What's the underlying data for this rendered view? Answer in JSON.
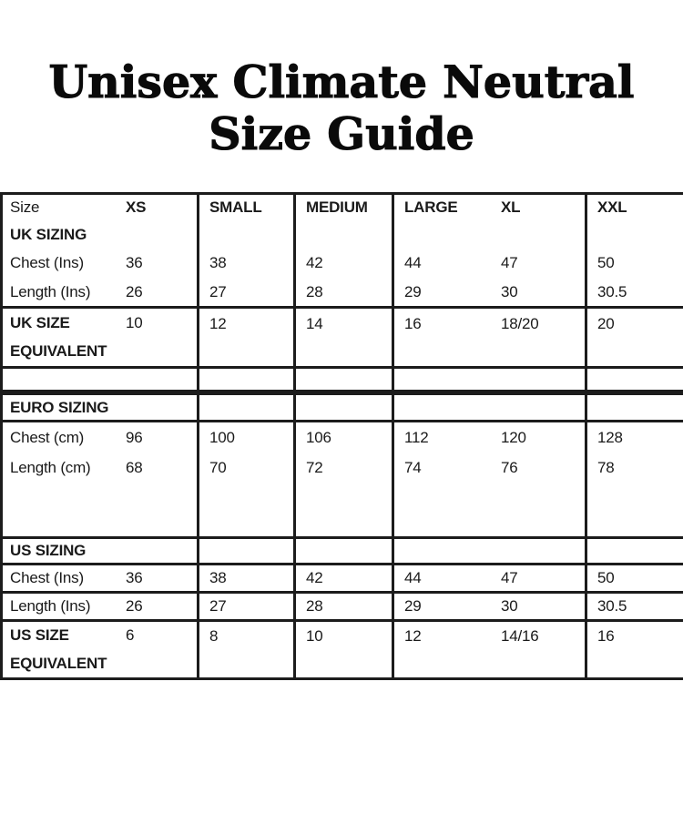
{
  "title": {
    "line1": "Unisex Climate Neutral",
    "line2": "Size Guide"
  },
  "colors": {
    "background": "#ffffff",
    "border": "#1c1c1c",
    "text": "#1a1a1a"
  },
  "table": {
    "header": {
      "label": "Size",
      "sizes": [
        "XS",
        "SMALL",
        "MEDIUM",
        "LARGE",
        "XL",
        "XXL"
      ]
    },
    "uk": {
      "section_label": "UK SIZING",
      "chest": {
        "label": "Chest (Ins)",
        "values": [
          "36",
          "38",
          "42",
          "44",
          "47",
          "50"
        ]
      },
      "length": {
        "label": "Length (Ins)",
        "values": [
          "26",
          "27",
          "28",
          "29",
          "30",
          "30.5"
        ]
      },
      "equivalent": {
        "label_line1": "UK SIZE",
        "label_line2": "EQUIVALENT",
        "values": [
          "10",
          "12",
          "14",
          "16",
          "18/20",
          "20"
        ]
      }
    },
    "euro": {
      "section_label": "EURO SIZING",
      "chest": {
        "label": "Chest (cm)",
        "values": [
          "96",
          "100",
          "106",
          "112",
          "120",
          "128"
        ]
      },
      "length": {
        "label": "Length (cm)",
        "values": [
          "68",
          "70",
          "72",
          "74",
          "76",
          "78"
        ]
      }
    },
    "us": {
      "section_label": "US SIZING",
      "chest": {
        "label": "Chest (Ins)",
        "values": [
          "36",
          "38",
          "42",
          "44",
          "47",
          "50"
        ]
      },
      "length": {
        "label": "Length (Ins)",
        "values": [
          "26",
          "27",
          "28",
          "29",
          "30",
          "30.5"
        ]
      },
      "equivalent": {
        "label_line1": "US SIZE",
        "label_line2": "EQUIVALENT",
        "values": [
          "6",
          "8",
          "10",
          "12",
          "14/16",
          "16"
        ]
      }
    }
  }
}
